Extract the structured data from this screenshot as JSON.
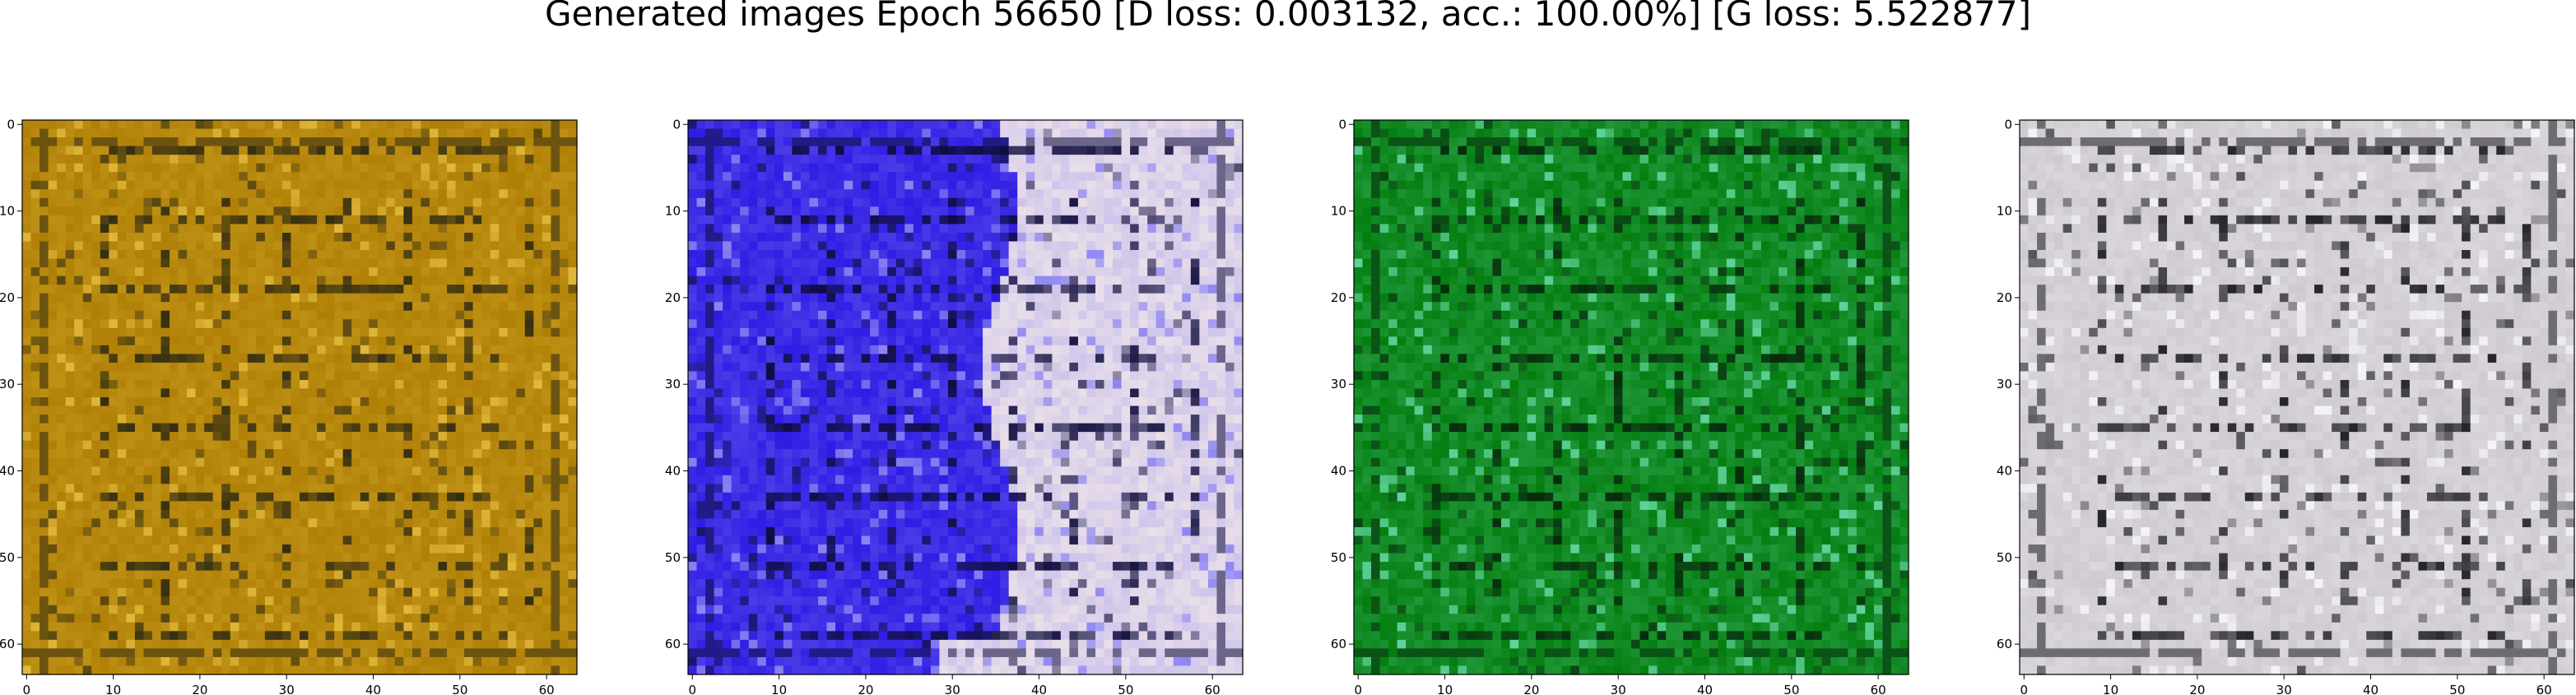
{
  "chart_data": {
    "type": "image-grid",
    "title": "Generated images Epoch 56650 [D loss: 0.003132, acc.: 100.00%] [G loss: 5.522877]",
    "panels": [
      {
        "name": "generated-image-1",
        "description_color": "golden-brown",
        "base_color": "#b7880e",
        "light_color": "#e0b83a",
        "dark_color": "#2e2a12",
        "right_block_color": null,
        "xticks": [
          0,
          10,
          20,
          30,
          40,
          50,
          60
        ],
        "yticks": [
          0,
          10,
          20,
          30,
          40,
          50,
          60
        ],
        "xlim": [
          -0.5,
          63.5
        ],
        "ylim": [
          63.5,
          -0.5
        ]
      },
      {
        "name": "generated-image-2",
        "description_color": "blue-and-lavender",
        "base_color": "#3c2ce6",
        "light_color": "#8f86f2",
        "dark_color": "#0d0b3a",
        "right_block_color": "#dcd2ea",
        "xticks": [
          0,
          10,
          20,
          30,
          40,
          50,
          60
        ],
        "yticks": [
          0,
          10,
          20,
          30,
          40,
          50,
          60
        ],
        "xlim": [
          -0.5,
          63.5
        ],
        "ylim": [
          63.5,
          -0.5
        ]
      },
      {
        "name": "generated-image-3",
        "description_color": "green",
        "base_color": "#128a24",
        "light_color": "#5fd39a",
        "dark_color": "#06260c",
        "right_block_color": null,
        "xticks": [
          0,
          10,
          20,
          30,
          40,
          50,
          60
        ],
        "yticks": [
          0,
          10,
          20,
          30,
          40,
          50,
          60
        ],
        "xlim": [
          -0.5,
          63.5
        ],
        "ylim": [
          63.5,
          -0.5
        ]
      },
      {
        "name": "generated-image-4",
        "description_color": "light-grey",
        "base_color": "#d4d0d6",
        "light_color": "#f4f4f8",
        "dark_color": "#1b1b22",
        "right_block_color": null,
        "xticks": [
          0,
          10,
          20,
          30,
          40,
          50,
          60
        ],
        "yticks": [
          0,
          10,
          20,
          30,
          40,
          50,
          60
        ],
        "xlim": [
          -0.5,
          63.5
        ],
        "ylim": [
          63.5,
          -0.5
        ]
      }
    ]
  }
}
